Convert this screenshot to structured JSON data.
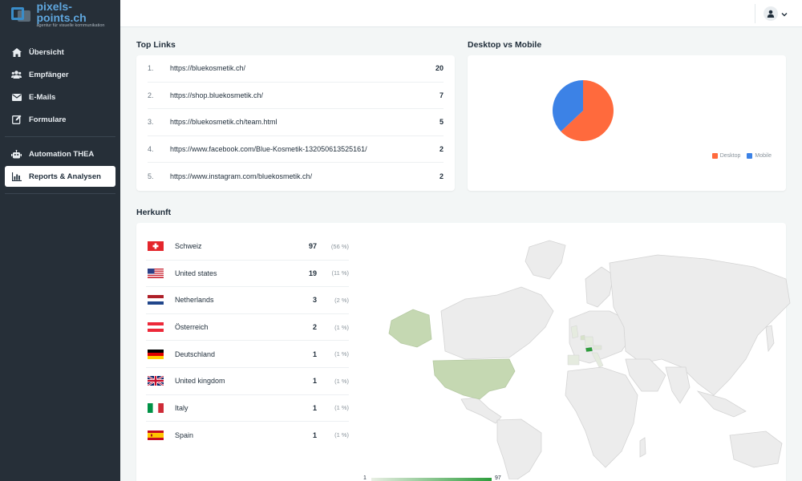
{
  "brand": {
    "name": "pixels-points.ch",
    "tagline": "agentur für visuelle kommunikation"
  },
  "sidebar": {
    "items": [
      {
        "label": "Übersicht",
        "icon": "home-icon"
      },
      {
        "label": "Empfänger",
        "icon": "users-icon"
      },
      {
        "label": "E-Mails",
        "icon": "envelope-icon"
      },
      {
        "label": "Formulare",
        "icon": "edit-icon"
      },
      {
        "label": "Automation THEA",
        "icon": "robot-icon"
      },
      {
        "label": "Reports & Analysen",
        "icon": "bar-chart-icon",
        "active": true
      }
    ]
  },
  "top_links": {
    "title": "Top Links",
    "rows": [
      {
        "num": "1.",
        "url": "https://bluekosmetik.ch/",
        "count": "20"
      },
      {
        "num": "2.",
        "url": "https://shop.bluekosmetik.ch/",
        "count": "7"
      },
      {
        "num": "3.",
        "url": "https://bluekosmetik.ch/team.html",
        "count": "5"
      },
      {
        "num": "4.",
        "url": "https://www.facebook.com/Blue-Kosmetik-132050613525161/",
        "count": "2"
      },
      {
        "num": "5.",
        "url": "https://www.instagram.com/bluekosmetik.ch/",
        "count": "2"
      }
    ]
  },
  "device": {
    "title": "Desktop vs Mobile",
    "legend": [
      {
        "label": "Desktop",
        "color": "#ff6a3d"
      },
      {
        "label": "Mobile",
        "color": "#3c82e6"
      }
    ]
  },
  "chart_data": {
    "type": "pie",
    "categories": [
      "Desktop",
      "Mobile"
    ],
    "values": [
      63,
      37
    ],
    "colors": [
      "#ff6a3d",
      "#3c82e6"
    ],
    "legend_position": "bottom-right"
  },
  "herkunft": {
    "title": "Herkunft",
    "rows": [
      {
        "country": "Schweiz",
        "count": "97",
        "pct": "(56 %)",
        "flag": "ch"
      },
      {
        "country": "United states",
        "count": "19",
        "pct": "(11 %)",
        "flag": "us"
      },
      {
        "country": "Netherlands",
        "count": "3",
        "pct": "(2 %)",
        "flag": "nl"
      },
      {
        "country": "Österreich",
        "count": "2",
        "pct": "(1 %)",
        "flag": "at"
      },
      {
        "country": "Deutschland",
        "count": "1",
        "pct": "(1 %)",
        "flag": "de"
      },
      {
        "country": "United kingdom",
        "count": "1",
        "pct": "(1 %)",
        "flag": "gb"
      },
      {
        "country": "Italy",
        "count": "1",
        "pct": "(1 %)",
        "flag": "it"
      },
      {
        "country": "Spain",
        "count": "1",
        "pct": "(1 %)",
        "flag": "es"
      }
    ],
    "scale_min": "1",
    "scale_max": "97",
    "map_colors": {
      "land": "#ececec",
      "border": "#d4d4d4",
      "highlight": "#c5d8b2",
      "strong": "#2d9d3c"
    }
  }
}
